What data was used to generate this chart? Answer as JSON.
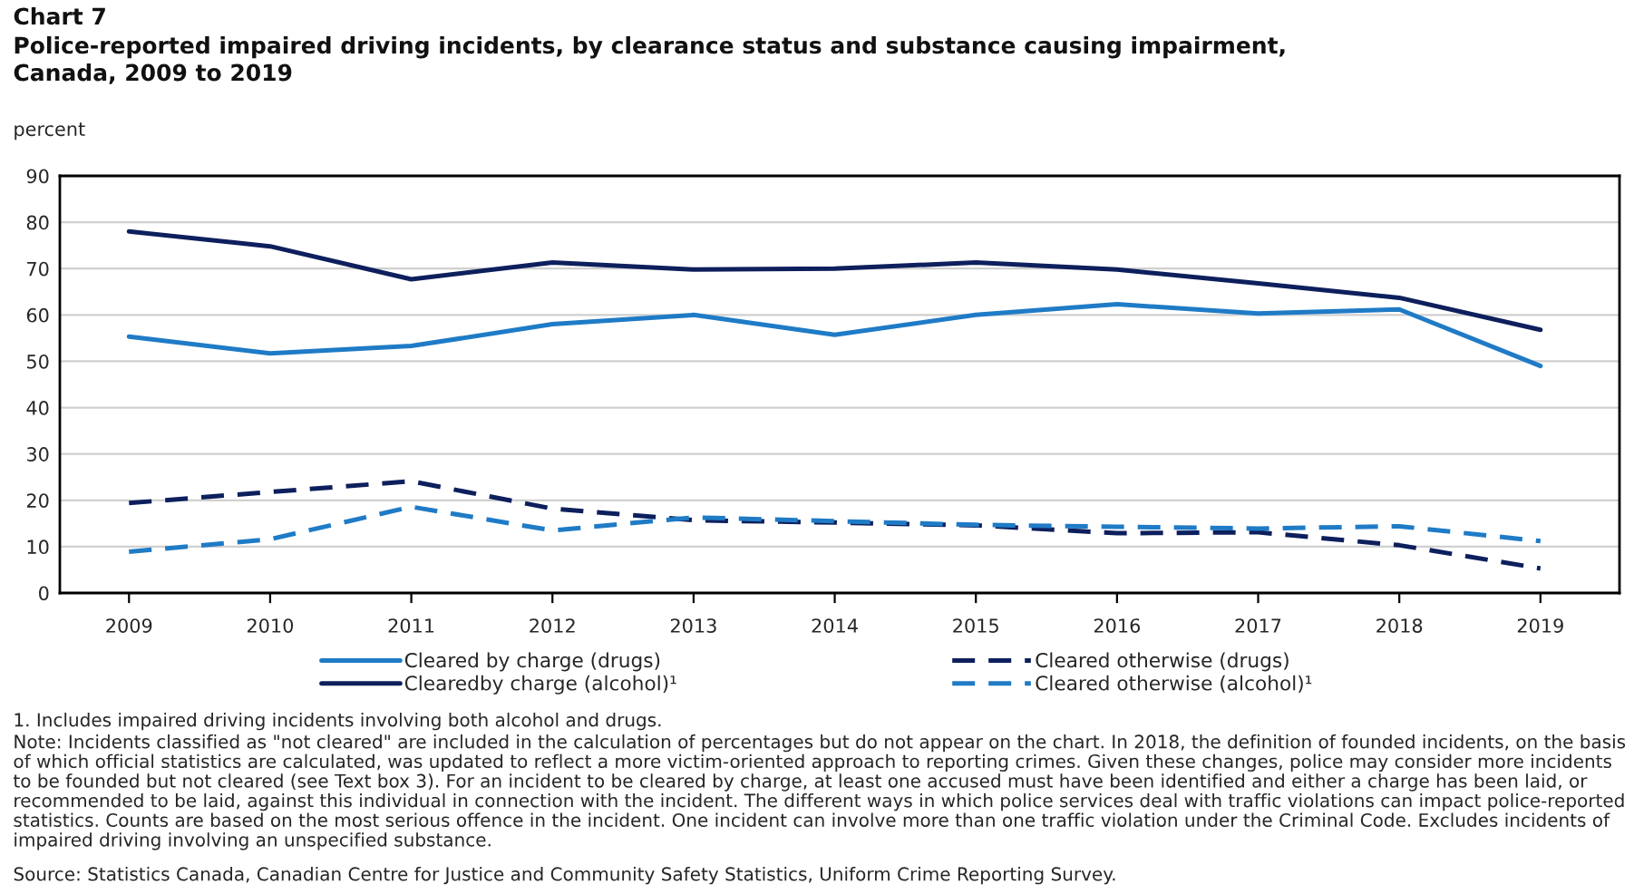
{
  "chart_data": {
    "type": "line",
    "title": "Chart 7",
    "subtitle": "Police-reported impaired driving incidents, by clearance status and substance causing impairment,\nCanada, 2009 to 2019",
    "ylabel": "percent",
    "categories": [
      "2009",
      "2010",
      "2011",
      "2012",
      "2013",
      "2014",
      "2015",
      "2016",
      "2017",
      "2018",
      "2019"
    ],
    "series": [
      {
        "name": "Cleared by charge (drugs)",
        "color": "#1f7bc6",
        "line_style": "solid",
        "values": [
          55.3,
          51.7,
          53.3,
          58,
          60,
          55.7,
          60,
          62.3,
          60.3,
          61.2,
          49
        ]
      },
      {
        "name": "Clearedby charge (alcohol)¹",
        "color": "#0d1f5c",
        "line_style": "solid",
        "values": [
          78,
          74.8,
          67.7,
          71.3,
          69.8,
          70,
          71.3,
          69.8,
          66.8,
          63.7,
          56.8
        ]
      },
      {
        "name": "Cleared otherwise (drugs)",
        "color": "#0d1f5c",
        "line_style": "dashed",
        "values": [
          19.4,
          21.8,
          24.1,
          18.2,
          15.7,
          15.2,
          14.6,
          12.9,
          13.1,
          10.3,
          5.3
        ]
      },
      {
        "name": "Cleared otherwise (alcohol)¹",
        "color": "#1f7bc6",
        "line_style": "dashed",
        "values": [
          8.9,
          11.6,
          18.6,
          13.5,
          16.3,
          15.5,
          14.7,
          14.3,
          13.9,
          14.4,
          11.2
        ]
      }
    ],
    "ylim": [
      0,
      90
    ],
    "yticks": [
      0,
      10,
      20,
      30,
      40,
      50,
      60,
      70,
      80,
      90
    ],
    "grid": "y",
    "legend": "bottom",
    "marker": "none",
    "annotations": [
      "1. Includes impaired driving incidents involving both alcohol and drugs.",
      "Note: Incidents classified as \"not cleared\" are included in the calculation of percentages but do not appear on the chart. In 2018, the definition of founded incidents, on the basis of which official statistics are calculated, was updated to reflect a more victim-oriented approach to reporting crimes. Given these changes, police may consider more incidents to be founded but not cleared (see Text box 3). For an incident to be cleared by charge, at least one accused must have been identified and either a charge has been laid, or recommended to be laid, against this individual in connection with the incident. The different ways in which police services deal with traffic violations can impact police-reported statistics. Counts are based on the most serious offence in the incident. One incident can involve more than one traffic violation under the Criminal Code. Excludes incidents of impaired driving involving an unspecified substance.",
      "Source: Statistics Canada, Canadian Centre for Justice and Community Safety Statistics, Uniform Crime Reporting Survey."
    ]
  }
}
